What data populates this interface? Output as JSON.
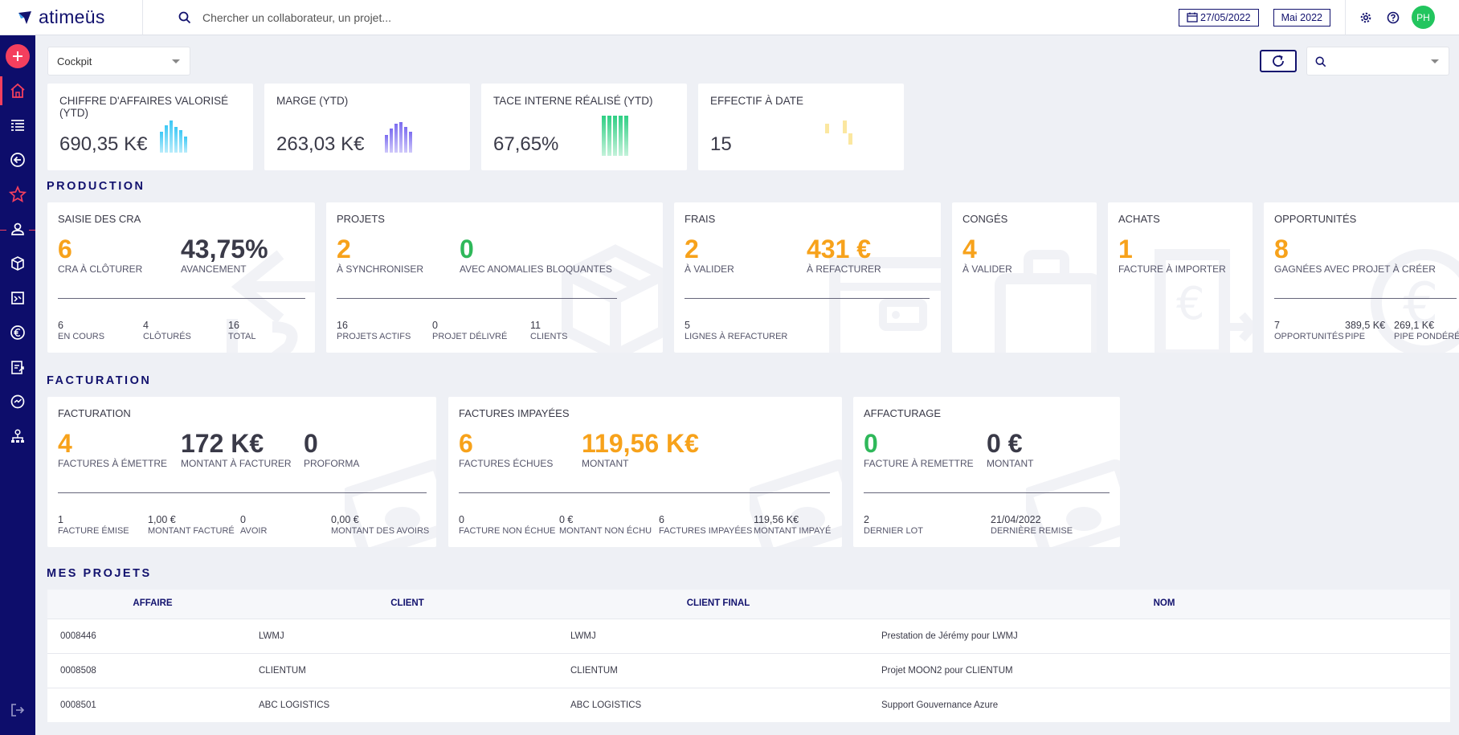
{
  "app": {
    "brand": "atimeüs"
  },
  "search": {
    "placeholder": "Chercher un collaborateur, un projet..."
  },
  "header": {
    "date": "27/05/2022",
    "period": "Mai 2022",
    "user_initials": "PH"
  },
  "colors": {
    "navy": "#12126e",
    "accent": "#f43f5e",
    "orange": "#f7a21b",
    "green": "#2fb85a",
    "avatar": "#22c55e"
  },
  "sidebar": {
    "items": [
      "add-icon",
      "home-icon",
      "list-icon",
      "back-icon",
      "star-icon",
      "user-icon",
      "box-icon",
      "book-icon",
      "euro-icon",
      "invoice-icon",
      "chart-icon",
      "org-icon",
      "logout-icon"
    ]
  },
  "cockpit": {
    "selected": "Cockpit"
  },
  "kpis": [
    {
      "label": "CHIFFRE D'AFFAIRES VALORISÉ (YTD)",
      "value": "690,35 K€"
    },
    {
      "label": "MARGE (YTD)",
      "value": "263,03 K€"
    },
    {
      "label": "TACE INTERNE RÉALISÉ (YTD)",
      "value": "67,65%"
    },
    {
      "label": "EFFECTIF À DATE",
      "value": "15"
    }
  ],
  "production": {
    "title": "PRODUCTION",
    "cra": {
      "title": "SAISIE DES CRA",
      "big1": "6",
      "big1_label": "CRA À CLÔTURER",
      "big2": "43,75%",
      "big2_label": "AVANCEMENT",
      "s1": "6",
      "s1_label": "EN COURS",
      "s2": "4",
      "s2_label": "CLÔTURÉS",
      "s3": "16",
      "s3_label": "TOTAL"
    },
    "projets": {
      "title": "PROJETS",
      "big1": "2",
      "big1_label": "À SYNCHRONISER",
      "big2": "0",
      "big2_label": "AVEC ANOMALIES BLOQUANTES",
      "s1": "16",
      "s1_label": "PROJETS ACTIFS",
      "s2": "0",
      "s2_label": "PROJET DÉLIVRÉ",
      "s3": "11",
      "s3_label": "CLIENTS"
    },
    "frais": {
      "title": "FRAIS",
      "big1": "2",
      "big1_label": "À VALIDER",
      "big2": "431 €",
      "big2_label": "À REFACTURER",
      "s1": "5",
      "s1_label": "LIGNES À REFACTURER"
    },
    "conges": {
      "title": "CONGÉS",
      "big1": "4",
      "big1_label": "À VALIDER"
    },
    "achats": {
      "title": "ACHATS",
      "big1": "1",
      "big1_label": "FACTURE À IMPORTER"
    },
    "opportunites": {
      "title": "OPPORTUNITÉS",
      "big1": "8",
      "big1_label": "GAGNÉES AVEC PROJET À CRÉER",
      "s1": "7",
      "s1_label": "OPPORTUNITÉS",
      "s2": "389,5 K€",
      "s2_label": "PIPE",
      "s3": "269,1 K€",
      "s3_label": "PIPE PONDÉRÉ"
    }
  },
  "facturation": {
    "title": "FACTURATION",
    "fact": {
      "title": "FACTURATION",
      "big1": "4",
      "big1_label": "FACTURES À ÉMETTRE",
      "big2": "172 K€",
      "big2_label": "MONTANT À FACTURER",
      "big3": "0",
      "big3_label": "PROFORMA",
      "s1": "1",
      "s1_label": "FACTURE ÉMISE",
      "s2": "1,00 €",
      "s2_label": "MONTANT FACTURÉ",
      "s3": "0",
      "s3_label": "AVOIR",
      "s4": "0,00 €",
      "s4_label": "MONTANT DES AVOIRS"
    },
    "impayees": {
      "title": "FACTURES IMPAYÉES",
      "big1": "6",
      "big1_label": "FACTURES ÉCHUES",
      "big2": "119,56 K€",
      "big2_label": "MONTANT",
      "s1": "0",
      "s1_label": "FACTURE NON ÉCHUE",
      "s2": "0 €",
      "s2_label": "MONTANT NON ÉCHU",
      "s3": "6",
      "s3_label": "FACTURES IMPAYÉES",
      "s4": "119,56 K€",
      "s4_label": "MONTANT IMPAYÉ"
    },
    "affacturage": {
      "title": "AFFACTURAGE",
      "big1": "0",
      "big1_label": "FACTURE À REMETTRE",
      "big2": "0 €",
      "big2_label": "MONTANT",
      "s1": "2",
      "s1_label": "DERNIER LOT",
      "s2": "21/04/2022",
      "s2_label": "DERNIÈRE REMISE"
    }
  },
  "projets_table": {
    "title": "MES PROJETS",
    "columns": [
      "AFFAIRE",
      "CLIENT",
      "CLIENT FINAL",
      "NOM"
    ],
    "rows": [
      [
        "0008446",
        "LWMJ",
        "LWMJ",
        "Prestation de Jérémy pour LWMJ"
      ],
      [
        "0008508",
        "CLIENTUM",
        "CLIENTUM",
        "Projet MOON2 pour CLIENTUM"
      ],
      [
        "0008501",
        "ABC LOGISTICS",
        "ABC LOGISTICS",
        "Support Gouvernance Azure"
      ]
    ]
  }
}
